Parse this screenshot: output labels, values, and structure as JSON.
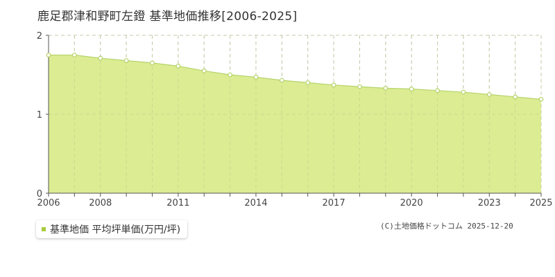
{
  "chart_data": {
    "type": "area",
    "title": "鹿足郡津和野町左鐙 基準地価推移[2006-2025]",
    "x": [
      2006,
      2007,
      2008,
      2009,
      2010,
      2011,
      2012,
      2013,
      2014,
      2015,
      2016,
      2017,
      2018,
      2019,
      2020,
      2021,
      2022,
      2023,
      2024,
      2025
    ],
    "series": [
      {
        "name": "基準地価 平均坪単価(万円/坪)",
        "values": [
          1.75,
          1.75,
          1.71,
          1.68,
          1.65,
          1.61,
          1.55,
          1.5,
          1.47,
          1.43,
          1.4,
          1.37,
          1.35,
          1.33,
          1.32,
          1.3,
          1.28,
          1.25,
          1.22,
          1.19
        ]
      }
    ],
    "x_tick_labels": [
      "2006",
      "2008",
      "2011",
      "2014",
      "2017",
      "2020",
      "2023",
      "2025"
    ],
    "y_ticks": [
      0,
      1,
      2
    ],
    "ylim": [
      0,
      2
    ],
    "xlim": [
      2006,
      2025
    ],
    "grid": true,
    "legend_position": "bottom-left",
    "colors": {
      "fill": "#dcec93",
      "line": "#b5d36a",
      "marker": "#ffffff",
      "legend": "#a8cc3b"
    }
  },
  "copyright": "(C)土地価格ドットコム 2025-12-20"
}
